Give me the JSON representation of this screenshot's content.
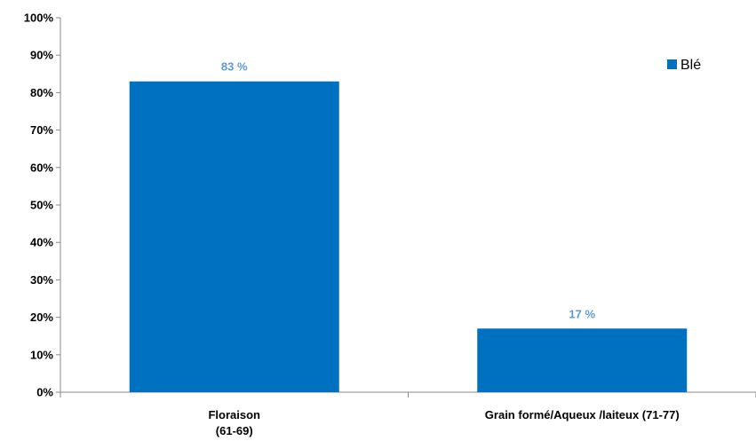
{
  "chart_data": {
    "type": "bar",
    "categories": [
      [
        "Floraison",
        "(61-69)"
      ],
      [
        "Grain formé/Aqueux /laiteux (71-77)"
      ]
    ],
    "series": [
      {
        "name": "Blé",
        "values": [
          83,
          17
        ],
        "color": "#0070C0"
      }
    ],
    "data_labels": [
      "83 %",
      "17 %"
    ],
    "data_label_color": "#5B9BD5",
    "ylim": [
      0,
      100
    ],
    "yticks": [
      0,
      10,
      20,
      30,
      40,
      50,
      60,
      70,
      80,
      90,
      100
    ],
    "ytick_labels": [
      "0%",
      "10%",
      "20%",
      "30%",
      "40%",
      "50%",
      "60%",
      "70%",
      "80%",
      "90%",
      "100%"
    ],
    "grid": false,
    "legend_position": "top-right"
  }
}
